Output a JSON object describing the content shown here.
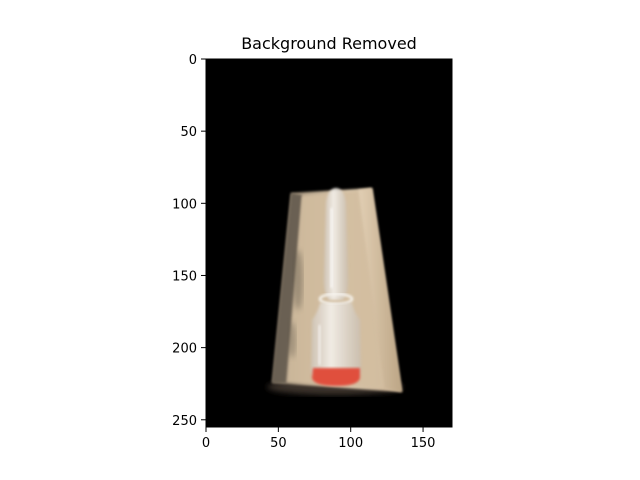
{
  "chart_data": {
    "type": "image",
    "title": "Background Removed",
    "xlabel": "",
    "ylabel": "",
    "xlim": [
      0,
      170
    ],
    "ylim": [
      255,
      0
    ],
    "x_ticks": [
      0,
      50,
      100,
      150
    ],
    "y_ticks": [
      0,
      50,
      100,
      150,
      200,
      250
    ],
    "grid": false,
    "legend": "none",
    "image_subject": "ampoule-in-tray",
    "colors": {
      "background": "#000000",
      "tray": "#c9b49a",
      "tray_shadow": "#8a7a66",
      "glass": "#e8e4df",
      "liquid": "#e0503c"
    }
  }
}
